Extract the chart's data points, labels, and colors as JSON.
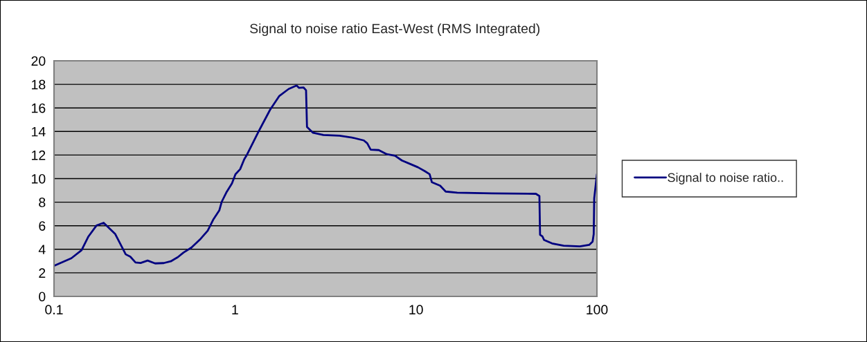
{
  "chart_data": {
    "type": "line",
    "title": "Signal to noise ratio East-West (RMS Integrated)",
    "log": "x",
    "grid": "y",
    "legend": "right",
    "marker": "none",
    "line_style": "solid",
    "xlim": [
      0.1,
      100
    ],
    "xticks": [
      0.1,
      1,
      10,
      100
    ],
    "ylim": [
      0,
      20
    ],
    "yticks": [
      0,
      2,
      4,
      6,
      8,
      10,
      12,
      14,
      16,
      18,
      20
    ],
    "series": [
      {
        "name": "Signal to noise ratio..",
        "color": "#000080",
        "x": [
          0.1,
          0.1247,
          0.142,
          0.155,
          0.172,
          0.188,
          0.218,
          0.249,
          0.264,
          0.282,
          0.301,
          0.329,
          0.362,
          0.404,
          0.442,
          0.483,
          0.519,
          0.575,
          0.647,
          0.707,
          0.761,
          0.819,
          0.844,
          0.895,
          0.962,
          1.006,
          1.068,
          1.125,
          1.166,
          1.35,
          1.564,
          1.759,
          1.98,
          2.19,
          2.26,
          2.39,
          2.47,
          2.5,
          2.7,
          3.08,
          3.78,
          4.51,
          5.15,
          5.38,
          5.62,
          6.23,
          6.9,
          7.66,
          8.36,
          9.4,
          10.26,
          11.2,
          11.9,
          12.25,
          13.6,
          14.6,
          16.9,
          26.3,
          46.0,
          48.1,
          48.5,
          50.0,
          51.0,
          56.5,
          65.5,
          80.5,
          90.6,
          94.6,
          96.0,
          96.6,
          100
        ],
        "values": [
          2.6,
          3.24,
          3.92,
          5.09,
          6.03,
          6.25,
          5.29,
          3.57,
          3.37,
          2.88,
          2.84,
          3.04,
          2.8,
          2.83,
          2.98,
          3.33,
          3.72,
          4.15,
          4.9,
          5.58,
          6.56,
          7.3,
          8.02,
          8.81,
          9.59,
          10.37,
          10.8,
          11.64,
          12.04,
          13.99,
          15.85,
          17.02,
          17.61,
          17.9,
          17.7,
          17.74,
          17.5,
          14.38,
          13.89,
          13.7,
          13.64,
          13.46,
          13.24,
          13.0,
          12.46,
          12.42,
          12.07,
          11.94,
          11.54,
          11.21,
          10.96,
          10.63,
          10.37,
          9.69,
          9.4,
          8.9,
          8.81,
          8.75,
          8.71,
          8.52,
          5.23,
          5.09,
          4.8,
          4.5,
          4.31,
          4.25,
          4.37,
          4.65,
          5.29,
          8.32,
          10.37
        ]
      }
    ]
  }
}
